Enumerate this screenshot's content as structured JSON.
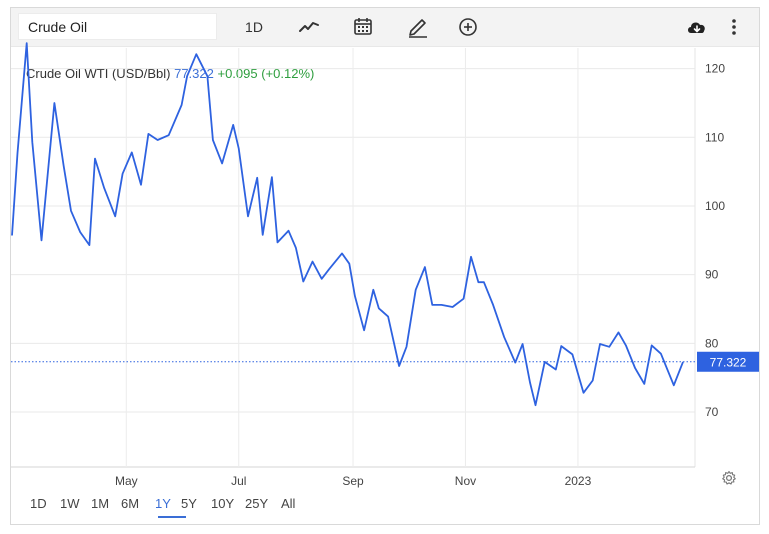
{
  "toolbar": {
    "symbol": "Crude Oil",
    "interval": "1D"
  },
  "quote": {
    "name": "Crude Oil WTI (USD/Bbl)",
    "price": "77.322",
    "change": "+0.095 (+0.12%)"
  },
  "ranges": [
    "1D",
    "1W",
    "1M",
    "6M",
    "1Y",
    "5Y",
    "10Y",
    "25Y",
    "All"
  ],
  "active_range": "1Y",
  "colors": {
    "line": "#2e62e0",
    "accent": "#3a6ed6",
    "up": "#2e9e3e"
  },
  "icons": [
    "line-chart-icon",
    "calendar-icon",
    "pencil-icon",
    "plus-circle-icon",
    "cloud-download-icon",
    "kebab-menu-icon",
    "gear-icon"
  ],
  "chart_data": {
    "type": "line",
    "xlabel": "",
    "ylabel": "",
    "ylim": [
      62,
      123
    ],
    "yticks": [
      70,
      80,
      90,
      100,
      110,
      120
    ],
    "xtick_labels": [
      "May",
      "Jul",
      "Sep",
      "Nov",
      "2023"
    ],
    "xtick_positions": [
      "2022-05-01",
      "2022-07-01",
      "2022-09-01",
      "2022-11-01",
      "2023-01-01"
    ],
    "xlim": [
      "2022-02-28",
      "2023-02-27"
    ],
    "grid": true,
    "last_value_label": "77.322",
    "series": [
      {
        "values": [
          [
            "2022-02-28",
            95.7
          ],
          [
            "2022-03-03",
            107.7
          ],
          [
            "2022-03-08",
            123.7
          ],
          [
            "2022-03-11",
            109.3
          ],
          [
            "2022-03-16",
            95.0
          ],
          [
            "2022-03-23",
            115.0
          ],
          [
            "2022-03-28",
            105.9
          ],
          [
            "2022-04-01",
            99.3
          ],
          [
            "2022-04-06",
            96.2
          ],
          [
            "2022-04-11",
            94.3
          ],
          [
            "2022-04-14",
            106.9
          ],
          [
            "2022-04-19",
            102.6
          ],
          [
            "2022-04-25",
            98.5
          ],
          [
            "2022-04-29",
            104.7
          ],
          [
            "2022-05-04",
            107.8
          ],
          [
            "2022-05-09",
            103.1
          ],
          [
            "2022-05-13",
            110.5
          ],
          [
            "2022-05-18",
            109.6
          ],
          [
            "2022-05-24",
            110.3
          ],
          [
            "2022-05-31",
            114.7
          ],
          [
            "2022-06-03",
            118.9
          ],
          [
            "2022-06-08",
            122.1
          ],
          [
            "2022-06-14",
            118.9
          ],
          [
            "2022-06-17",
            109.6
          ],
          [
            "2022-06-22",
            106.2
          ],
          [
            "2022-06-28",
            111.8
          ],
          [
            "2022-07-01",
            108.4
          ],
          [
            "2022-07-06",
            98.5
          ],
          [
            "2022-07-11",
            104.1
          ],
          [
            "2022-07-14",
            95.8
          ],
          [
            "2022-07-19",
            104.2
          ],
          [
            "2022-07-22",
            94.7
          ],
          [
            "2022-07-28",
            96.4
          ],
          [
            "2022-08-01",
            93.9
          ],
          [
            "2022-08-05",
            89.0
          ],
          [
            "2022-08-10",
            91.9
          ],
          [
            "2022-08-15",
            89.4
          ],
          [
            "2022-08-19",
            90.8
          ],
          [
            "2022-08-26",
            93.1
          ],
          [
            "2022-08-30",
            91.6
          ],
          [
            "2022-09-02",
            86.9
          ],
          [
            "2022-09-07",
            81.9
          ],
          [
            "2022-09-12",
            87.8
          ],
          [
            "2022-09-15",
            85.1
          ],
          [
            "2022-09-20",
            83.9
          ],
          [
            "2022-09-26",
            76.7
          ],
          [
            "2022-09-30",
            79.5
          ],
          [
            "2022-10-05",
            87.8
          ],
          [
            "2022-10-10",
            91.1
          ],
          [
            "2022-10-14",
            85.6
          ],
          [
            "2022-10-19",
            85.6
          ],
          [
            "2022-10-25",
            85.3
          ],
          [
            "2022-10-31",
            86.5
          ],
          [
            "2022-11-04",
            92.6
          ],
          [
            "2022-11-08",
            88.9
          ],
          [
            "2022-11-11",
            88.9
          ],
          [
            "2022-11-16",
            85.6
          ],
          [
            "2022-11-22",
            80.9
          ],
          [
            "2022-11-28",
            77.2
          ],
          [
            "2022-12-02",
            79.9
          ],
          [
            "2022-12-06",
            74.3
          ],
          [
            "2022-12-09",
            71.0
          ],
          [
            "2022-12-14",
            77.3
          ],
          [
            "2022-12-20",
            76.2
          ],
          [
            "2022-12-23",
            79.6
          ],
          [
            "2022-12-29",
            78.4
          ],
          [
            "2023-01-04",
            72.8
          ],
          [
            "2023-01-09",
            74.6
          ],
          [
            "2023-01-13",
            79.9
          ],
          [
            "2023-01-18",
            79.5
          ],
          [
            "2023-01-23",
            81.6
          ],
          [
            "2023-01-27",
            79.7
          ],
          [
            "2023-02-01",
            76.4
          ],
          [
            "2023-02-06",
            74.1
          ],
          [
            "2023-02-10",
            79.7
          ],
          [
            "2023-02-15",
            78.5
          ],
          [
            "2023-02-22",
            73.9
          ],
          [
            "2023-02-27",
            77.3
          ]
        ]
      }
    ]
  }
}
